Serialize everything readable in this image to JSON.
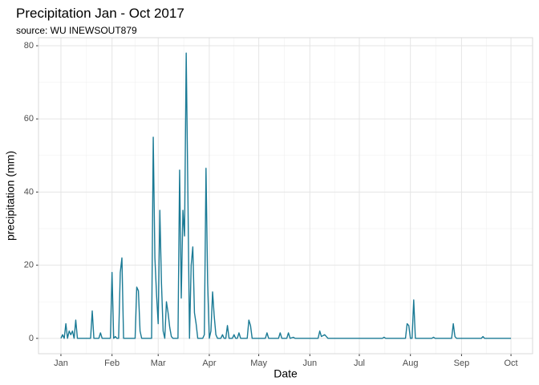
{
  "chart_data": {
    "type": "line",
    "title": "Precipitation Jan - Oct 2017",
    "subtitle": "source: WU INEWSOUT879",
    "x_label": "Date",
    "y_label": "precipitation (mm)",
    "x": [
      0,
      1,
      2,
      3,
      4,
      5,
      6,
      7,
      8,
      9,
      10,
      18,
      19,
      20,
      23,
      24,
      25,
      30,
      31,
      32,
      33,
      34,
      35,
      36,
      37,
      38,
      45,
      46,
      47,
      48,
      49,
      55,
      56,
      57,
      58,
      59,
      60,
      61,
      62,
      63,
      64,
      65,
      66,
      67,
      68,
      71,
      72,
      73,
      74,
      75,
      76,
      77,
      78,
      79,
      80,
      81,
      82,
      83,
      86,
      87,
      88,
      89,
      90,
      91,
      92,
      93,
      94,
      95,
      97,
      98,
      99,
      100,
      101,
      102,
      104,
      105,
      106,
      107,
      108,
      109,
      113,
      114,
      115,
      116,
      124,
      125,
      126,
      132,
      133,
      134,
      137,
      138,
      139,
      141,
      142,
      156,
      157,
      158,
      160,
      161,
      162,
      195,
      196,
      197,
      209,
      210,
      211,
      212,
      213,
      214,
      215,
      225,
      226,
      227,
      237,
      238,
      239,
      240,
      255,
      256,
      257,
      273
    ],
    "series": [
      {
        "color": "#1a7a95",
        "values": [
          0,
          1,
          0,
          4,
          0,
          2,
          1,
          2,
          0,
          5,
          0,
          0,
          7.5,
          0,
          0,
          1.5,
          0,
          0,
          18,
          0,
          0.5,
          0,
          0,
          18,
          22,
          0,
          0,
          14,
          13,
          2,
          0,
          0,
          55,
          22,
          12,
          4,
          35,
          15,
          2,
          0,
          10,
          7,
          3,
          0.5,
          0,
          0,
          46,
          11,
          35,
          28,
          78,
          40,
          0,
          20,
          25,
          7,
          4,
          0,
          0,
          1,
          46.5,
          15,
          0,
          2,
          12.7,
          6,
          1,
          0,
          0,
          1,
          0,
          0,
          3.5,
          0,
          0,
          1,
          0,
          0,
          1.5,
          0,
          0,
          5,
          3.5,
          0,
          0,
          1.5,
          0,
          0,
          1.5,
          0,
          0,
          1.5,
          0,
          0.3,
          0,
          0,
          2,
          0.5,
          1,
          0.5,
          0,
          0,
          0.3,
          0,
          0,
          4,
          3.5,
          0,
          0,
          10.5,
          0,
          0,
          0.3,
          0,
          0,
          4,
          0.5,
          0,
          0,
          0.5,
          0,
          0
        ]
      }
    ],
    "xlim": [
      -13.6,
      286.1
    ],
    "xticks": [
      {
        "value": 0,
        "label": "Jan"
      },
      {
        "value": 31,
        "label": "Feb"
      },
      {
        "value": 59,
        "label": "Mar"
      },
      {
        "value": 90,
        "label": "Apr"
      },
      {
        "value": 120,
        "label": "May"
      },
      {
        "value": 151,
        "label": "Jun"
      },
      {
        "value": 181,
        "label": "Jul"
      },
      {
        "value": 212,
        "label": "Aug"
      },
      {
        "value": 243,
        "label": "Sep"
      },
      {
        "value": 273,
        "label": "Oct"
      }
    ],
    "ylim": [
      -4.2,
      82.2
    ],
    "yticks": [
      0,
      20,
      40,
      60,
      80
    ],
    "grid": true
  }
}
